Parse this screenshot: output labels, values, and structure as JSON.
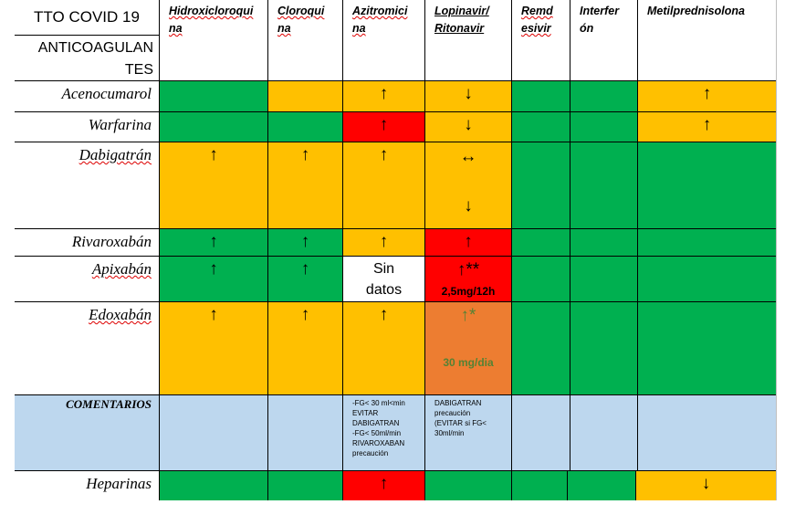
{
  "colors": {
    "green": "#00b050",
    "yellow": "#ffc000",
    "red": "#ff0000",
    "orange": "#ed7d31",
    "comment_blue": "#bdd7ee",
    "white": "#ffffff",
    "dark_green_text": "#548235"
  },
  "header": {
    "title_top": "TTO COVID 19",
    "title_bottom": "ANTICOAGULAN\nTES",
    "columns": [
      {
        "label": "Hidroxicloroqui\nna"
      },
      {
        "label": "Cloroqui\nna"
      },
      {
        "label": "Azitromici\nna"
      },
      {
        "label": "Lopinavir/\nRitonavir"
      },
      {
        "label": "Remd\nesivir"
      },
      {
        "label": "Interfer\nón"
      },
      {
        "label": "Metilprednisolona"
      }
    ]
  },
  "rows": [
    {
      "label": "Acenocumarol"
    },
    {
      "label": "Warfarina"
    },
    {
      "label": "Dabigatrán"
    },
    {
      "label": "Rivaroxabán"
    },
    {
      "label": "Apixabán"
    },
    {
      "label": "Edoxabán"
    },
    {
      "label": "COMENTARIOS"
    },
    {
      "label": "Heparinas"
    }
  ],
  "symbols": {
    "up": "↑",
    "down": "↓",
    "both": "↔",
    "up_double_star": "↑**",
    "up_star": "↑*"
  },
  "cells": {
    "apixaban_azitro": "Sin\ndatos",
    "apixaban_lopinavir_note": "2,5mg/12h",
    "edoxaban_lopinavir_note": "30 mg/dia",
    "comment_azitro": "-FG< 30 ml<min\nEVITAR\nDABIGATRAN\n-FG< 50ml/min\nRIVAROXABAN\nprecaución",
    "comment_lopinavir": "DABIGATRAN\nprecaución\n(EVITAR si FG<\n30ml/min"
  }
}
